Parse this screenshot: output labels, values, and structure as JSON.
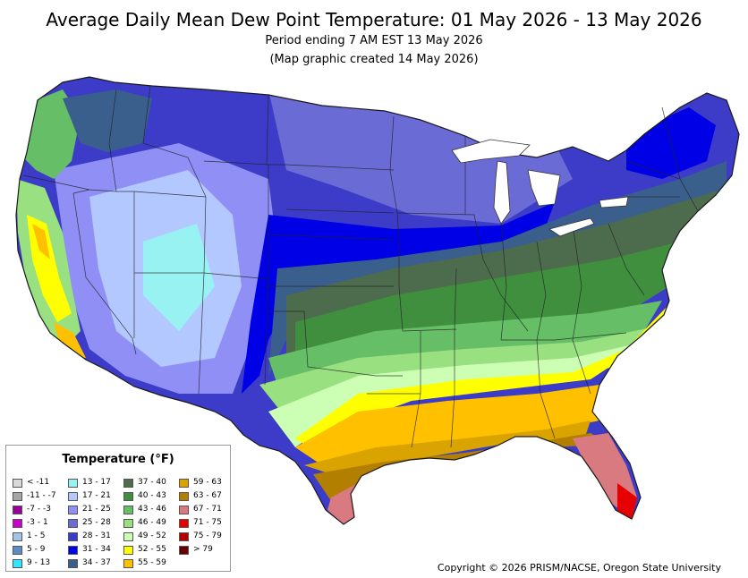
{
  "header": {
    "title": "Average Daily Mean Dew Point Temperature: 01 May 2026 - 13 May 2026",
    "subtitle_line1": "Period ending 7 AM EST 13 May 2026",
    "subtitle_line2": "(Map graphic created 14 May 2026)"
  },
  "legend": {
    "title": "Temperature (°F)",
    "items": [
      {
        "label": "< -11",
        "color": "#d9d9d9"
      },
      {
        "label": "-11 - -7",
        "color": "#a6a6a6"
      },
      {
        "label": "-7 - -3",
        "color": "#990099"
      },
      {
        "label": "-3 - 1",
        "color": "#cc00cc"
      },
      {
        "label": "1 - 5",
        "color": "#a3c4e6"
      },
      {
        "label": "5 - 9",
        "color": "#5b8cc6"
      },
      {
        "label": "9 - 13",
        "color": "#33e6ff"
      },
      {
        "label": "13 - 17",
        "color": "#99f2f2"
      },
      {
        "label": "17 - 21",
        "color": "#b3c8ff"
      },
      {
        "label": "21 - 25",
        "color": "#8f8ff5"
      },
      {
        "label": "25 - 28",
        "color": "#6b6bd6"
      },
      {
        "label": "28 - 31",
        "color": "#3c3cc8"
      },
      {
        "label": "31 - 34",
        "color": "#0000e6"
      },
      {
        "label": "34 - 37",
        "color": "#3a5f8c"
      },
      {
        "label": "37 - 40",
        "color": "#4d6b4d"
      },
      {
        "label": "40 - 43",
        "color": "#3f8f3f"
      },
      {
        "label": "43 - 46",
        "color": "#66bf66"
      },
      {
        "label": "46 - 49",
        "color": "#99e080"
      },
      {
        "label": "49 - 52",
        "color": "#ccffb3"
      },
      {
        "label": "52 - 55",
        "color": "#ffff00"
      },
      {
        "label": "55 - 59",
        "color": "#ffc000"
      },
      {
        "label": "59 - 63",
        "color": "#d9a300"
      },
      {
        "label": "63 - 67",
        "color": "#b37f00"
      },
      {
        "label": "67 - 71",
        "color": "#d97a80"
      },
      {
        "label": "71 - 75",
        "color": "#e60000"
      },
      {
        "label": "75 - 79",
        "color": "#b30000"
      },
      {
        "label": "> 79",
        "color": "#660000"
      }
    ]
  },
  "footer": {
    "copyright": "Copyright © 2026 PRISM/NACSE, Oregon State University"
  }
}
